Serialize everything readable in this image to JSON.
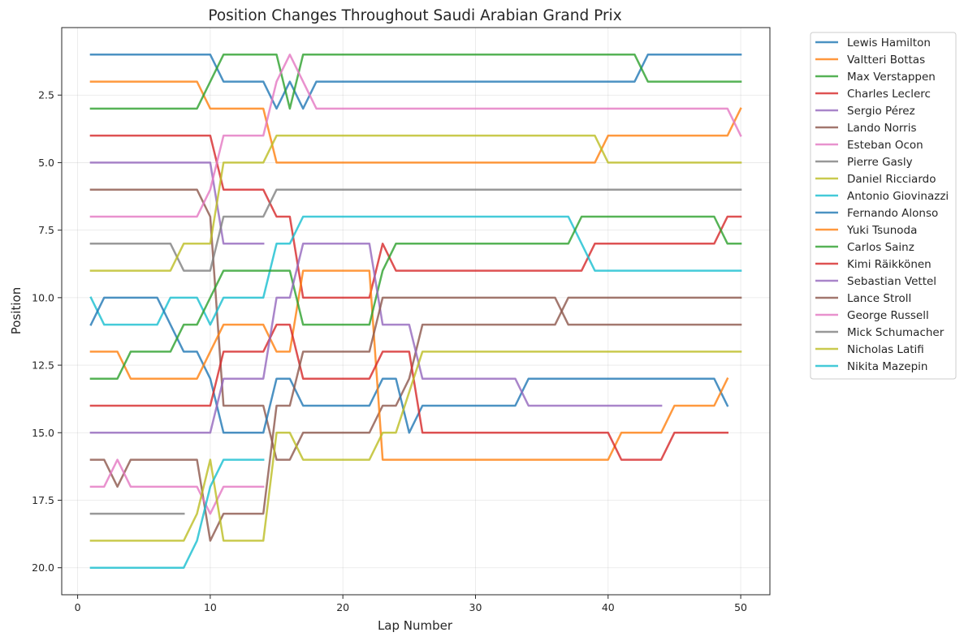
{
  "chart_data": {
    "type": "line",
    "title": "Position Changes Throughout Saudi Arabian Grand Prix",
    "xlabel": "Lap Number",
    "ylabel": "Position",
    "xlim": [
      -1.2,
      52.2
    ],
    "ylim": [
      21.0,
      0.0
    ],
    "y_inverted": true,
    "grid": true,
    "legend_position": "outside-top-right",
    "x_ticks": [
      0,
      10,
      20,
      30,
      40,
      50
    ],
    "x_tick_labels": [
      "0",
      "10",
      "20",
      "30",
      "40",
      "50"
    ],
    "y_ticks": [
      2.5,
      5.0,
      7.5,
      10.0,
      12.5,
      15.0,
      17.5,
      20.0
    ],
    "y_tick_labels": [
      "2.5",
      "5.0",
      "7.5",
      "10.0",
      "12.5",
      "15.0",
      "17.5",
      "20.0"
    ],
    "series": [
      {
        "name": "Lewis Hamilton",
        "color": "#1f77b4",
        "points": [
          [
            1,
            1
          ],
          [
            10,
            1
          ],
          [
            11,
            2
          ],
          [
            14,
            2
          ],
          [
            15,
            3
          ],
          [
            16,
            2
          ],
          [
            17,
            3
          ],
          [
            18,
            2
          ],
          [
            42,
            2
          ],
          [
            43,
            1
          ],
          [
            50,
            1
          ]
        ]
      },
      {
        "name": "Valtteri Bottas",
        "color": "#ff7f0e",
        "points": [
          [
            1,
            2
          ],
          [
            9,
            2
          ],
          [
            10,
            3
          ],
          [
            14,
            3
          ],
          [
            15,
            5
          ],
          [
            39,
            5
          ],
          [
            40,
            4
          ],
          [
            49,
            4
          ],
          [
            50,
            3
          ]
        ]
      },
      {
        "name": "Max Verstappen",
        "color": "#2ca02c",
        "points": [
          [
            1,
            3
          ],
          [
            9,
            3
          ],
          [
            11,
            1
          ],
          [
            15,
            1
          ],
          [
            16,
            3
          ],
          [
            17,
            1
          ],
          [
            42,
            1
          ],
          [
            43,
            2
          ],
          [
            50,
            2
          ]
        ]
      },
      {
        "name": "Charles Leclerc",
        "color": "#d62728",
        "points": [
          [
            1,
            4
          ],
          [
            10,
            4
          ],
          [
            11,
            6
          ],
          [
            14,
            6
          ],
          [
            15,
            7
          ],
          [
            16,
            7
          ],
          [
            17,
            10
          ],
          [
            22,
            10
          ],
          [
            23,
            8
          ],
          [
            24,
            9
          ],
          [
            38,
            9
          ],
          [
            39,
            8
          ],
          [
            48,
            8
          ],
          [
            49,
            7
          ],
          [
            50,
            7
          ]
        ]
      },
      {
        "name": "Sergio Pérez",
        "color": "#9467bd",
        "points": [
          [
            1,
            5
          ],
          [
            10,
            5
          ],
          [
            11,
            8
          ],
          [
            14,
            8
          ]
        ]
      },
      {
        "name": "Lando Norris",
        "color": "#8c564b",
        "points": [
          [
            1,
            6
          ],
          [
            9,
            6
          ],
          [
            10,
            7
          ],
          [
            11,
            14
          ],
          [
            14,
            14
          ],
          [
            15,
            16
          ],
          [
            16,
            16
          ],
          [
            17,
            15
          ],
          [
            22,
            15
          ],
          [
            23,
            14
          ],
          [
            24,
            14
          ],
          [
            25,
            13
          ],
          [
            26,
            11
          ],
          [
            36,
            11
          ],
          [
            37,
            10
          ],
          [
            50,
            10
          ]
        ]
      },
      {
        "name": "Esteban Ocon",
        "color": "#e377c2",
        "points": [
          [
            1,
            7
          ],
          [
            9,
            7
          ],
          [
            10,
            6
          ],
          [
            11,
            4
          ],
          [
            14,
            4
          ],
          [
            15,
            2
          ],
          [
            16,
            1
          ],
          [
            18,
            3
          ],
          [
            49,
            3
          ],
          [
            50,
            4
          ]
        ]
      },
      {
        "name": "Pierre Gasly",
        "color": "#7f7f7f",
        "points": [
          [
            1,
            8
          ],
          [
            7,
            8
          ],
          [
            8,
            9
          ],
          [
            10,
            9
          ],
          [
            11,
            7
          ],
          [
            14,
            7
          ],
          [
            15,
            6
          ],
          [
            50,
            6
          ]
        ]
      },
      {
        "name": "Daniel Ricciardo",
        "color": "#bcbd22",
        "points": [
          [
            1,
            9
          ],
          [
            7,
            9
          ],
          [
            8,
            8
          ],
          [
            10,
            8
          ],
          [
            11,
            5
          ],
          [
            14,
            5
          ],
          [
            15,
            4
          ],
          [
            39,
            4
          ],
          [
            40,
            5
          ],
          [
            50,
            5
          ]
        ]
      },
      {
        "name": "Antonio Giovinazzi",
        "color": "#17becf",
        "points": [
          [
            1,
            10
          ],
          [
            2,
            11
          ],
          [
            6,
            11
          ],
          [
            7,
            10
          ],
          [
            9,
            10
          ],
          [
            10,
            11
          ],
          [
            11,
            10
          ],
          [
            14,
            10
          ],
          [
            15,
            8
          ],
          [
            16,
            8
          ],
          [
            17,
            7
          ],
          [
            37,
            7
          ],
          [
            39,
            9
          ],
          [
            50,
            9
          ]
        ]
      },
      {
        "name": "Fernando Alonso",
        "color": "#1f77b4",
        "points": [
          [
            1,
            11
          ],
          [
            2,
            10
          ],
          [
            6,
            10
          ],
          [
            8,
            12
          ],
          [
            9,
            12
          ],
          [
            10,
            13
          ],
          [
            11,
            15
          ],
          [
            14,
            15
          ],
          [
            15,
            13
          ],
          [
            16,
            13
          ],
          [
            17,
            14
          ],
          [
            22,
            14
          ],
          [
            23,
            13
          ],
          [
            24,
            13
          ],
          [
            25,
            15
          ],
          [
            26,
            14
          ],
          [
            33,
            14
          ],
          [
            34,
            13
          ],
          [
            48,
            13
          ],
          [
            49,
            14
          ]
        ]
      },
      {
        "name": "Yuki Tsunoda",
        "color": "#ff7f0e",
        "points": [
          [
            1,
            12
          ],
          [
            3,
            12
          ],
          [
            4,
            13
          ],
          [
            9,
            13
          ],
          [
            11,
            11
          ],
          [
            14,
            11
          ],
          [
            15,
            12
          ],
          [
            16,
            12
          ],
          [
            17,
            9
          ],
          [
            22,
            9
          ],
          [
            23,
            16
          ],
          [
            40,
            16
          ],
          [
            41,
            15
          ],
          [
            44,
            15
          ],
          [
            45,
            14
          ],
          [
            48,
            14
          ],
          [
            49,
            13
          ]
        ]
      },
      {
        "name": "Carlos Sainz",
        "color": "#2ca02c",
        "points": [
          [
            1,
            13
          ],
          [
            3,
            13
          ],
          [
            4,
            12
          ],
          [
            7,
            12
          ],
          [
            8,
            11
          ],
          [
            9,
            11
          ],
          [
            11,
            9
          ],
          [
            16,
            9
          ],
          [
            17,
            11
          ],
          [
            22,
            11
          ],
          [
            23,
            9
          ],
          [
            24,
            8
          ],
          [
            37,
            8
          ],
          [
            38,
            7
          ],
          [
            48,
            7
          ],
          [
            49,
            8
          ],
          [
            50,
            8
          ]
        ]
      },
      {
        "name": "Kimi Räikkönen",
        "color": "#d62728",
        "points": [
          [
            1,
            14
          ],
          [
            10,
            14
          ],
          [
            11,
            12
          ],
          [
            14,
            12
          ],
          [
            15,
            11
          ],
          [
            16,
            11
          ],
          [
            17,
            13
          ],
          [
            22,
            13
          ],
          [
            23,
            12
          ],
          [
            25,
            12
          ],
          [
            26,
            15
          ],
          [
            40,
            15
          ],
          [
            41,
            16
          ],
          [
            44,
            16
          ],
          [
            45,
            15
          ],
          [
            49,
            15
          ]
        ]
      },
      {
        "name": "Sebastian Vettel",
        "color": "#9467bd",
        "points": [
          [
            1,
            15
          ],
          [
            10,
            15
          ],
          [
            11,
            13
          ],
          [
            14,
            13
          ],
          [
            15,
            10
          ],
          [
            16,
            10
          ],
          [
            17,
            8
          ],
          [
            22,
            8
          ],
          [
            23,
            11
          ],
          [
            25,
            11
          ],
          [
            26,
            13
          ],
          [
            33,
            13
          ],
          [
            34,
            14
          ],
          [
            44,
            14
          ]
        ]
      },
      {
        "name": "Lance Stroll",
        "color": "#8c564b",
        "points": [
          [
            1,
            16
          ],
          [
            2,
            16
          ],
          [
            3,
            17
          ],
          [
            4,
            16
          ],
          [
            9,
            16
          ],
          [
            10,
            19
          ],
          [
            11,
            18
          ],
          [
            14,
            18
          ],
          [
            15,
            14
          ],
          [
            16,
            14
          ],
          [
            17,
            12
          ],
          [
            22,
            12
          ],
          [
            23,
            10
          ],
          [
            36,
            10
          ],
          [
            37,
            11
          ],
          [
            50,
            11
          ]
        ]
      },
      {
        "name": "George Russell",
        "color": "#e377c2",
        "points": [
          [
            1,
            17
          ],
          [
            2,
            17
          ],
          [
            3,
            16
          ],
          [
            4,
            17
          ],
          [
            9,
            17
          ],
          [
            10,
            18
          ],
          [
            11,
            17
          ],
          [
            14,
            17
          ]
        ]
      },
      {
        "name": "Mick Schumacher",
        "color": "#7f7f7f",
        "points": [
          [
            1,
            18
          ],
          [
            8,
            18
          ]
        ]
      },
      {
        "name": "Nicholas Latifi",
        "color": "#bcbd22",
        "points": [
          [
            1,
            19
          ],
          [
            8,
            19
          ],
          [
            9,
            18
          ],
          [
            10,
            16
          ],
          [
            11,
            19
          ],
          [
            14,
            19
          ],
          [
            15,
            15
          ],
          [
            16,
            15
          ],
          [
            17,
            16
          ],
          [
            22,
            16
          ],
          [
            23,
            15
          ],
          [
            24,
            15
          ],
          [
            26,
            12
          ],
          [
            50,
            12
          ]
        ]
      },
      {
        "name": "Nikita Mazepin",
        "color": "#17becf",
        "points": [
          [
            1,
            20
          ],
          [
            8,
            20
          ],
          [
            9,
            19
          ],
          [
            10,
            17
          ],
          [
            11,
            16
          ],
          [
            14,
            16
          ]
        ]
      }
    ]
  }
}
